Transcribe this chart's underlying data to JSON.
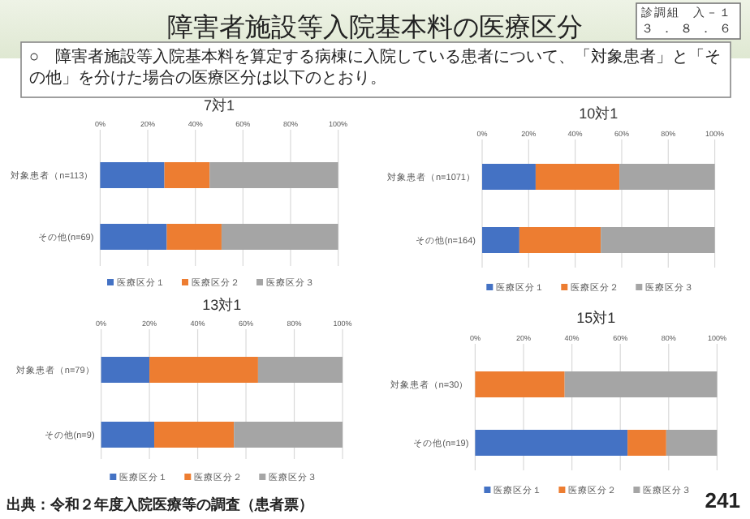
{
  "chart_data": [
    {
      "type": "other",
      "title": "障害者施設等入院基本料の医療区分",
      "annotations": [
        "診調組　入－１",
        "３．８．６",
        "○　障害者施設等入院基本料を算定する病棟に入院している患者について、「対象患者」と「その他」を分けた場合の医療区分は以下のとおり。",
        "出典：令和２年度入院医療等の調査（患者票）",
        "241"
      ]
    },
    {
      "type": "bar",
      "orientation": "horizontal",
      "stacked": true,
      "title": "7対1",
      "categories": [
        "対象患者（n=113）",
        "その他(n=69)"
      ],
      "xlim": [
        0,
        100
      ],
      "xticks": [
        {
          "value": 0,
          "label": "0%"
        },
        {
          "value": 20,
          "label": "20%"
        },
        {
          "value": 40,
          "label": "40%"
        },
        {
          "value": 60,
          "label": "60%"
        },
        {
          "value": 80,
          "label": "80%"
        },
        {
          "value": 100,
          "label": "100%"
        }
      ],
      "grid": "x",
      "legend": "bottom",
      "series": [
        {
          "name": "医療区分１",
          "color": "#4472c4",
          "values": [
            27,
            28
          ]
        },
        {
          "name": "医療区分２",
          "color": "#ed7d31",
          "values": [
            19,
            23
          ]
        },
        {
          "name": "医療区分３",
          "color": "#a5a5a5",
          "values": [
            54,
            49
          ]
        }
      ]
    },
    {
      "type": "bar",
      "orientation": "horizontal",
      "stacked": true,
      "title": "10対1",
      "categories": [
        "対象患者（n=1071）",
        "その他(n=164)"
      ],
      "xlim": [
        0,
        100
      ],
      "xticks": [
        {
          "value": 0,
          "label": "0%"
        },
        {
          "value": 20,
          "label": "20%"
        },
        {
          "value": 40,
          "label": "40%"
        },
        {
          "value": 60,
          "label": "60%"
        },
        {
          "value": 80,
          "label": "80%"
        },
        {
          "value": 100,
          "label": "100%"
        }
      ],
      "grid": "x",
      "legend": "bottom",
      "series": [
        {
          "name": "医療区分１",
          "color": "#4472c4",
          "values": [
            23,
            16
          ]
        },
        {
          "name": "医療区分２",
          "color": "#ed7d31",
          "values": [
            36,
            35
          ]
        },
        {
          "name": "医療区分３",
          "color": "#a5a5a5",
          "values": [
            41,
            49
          ]
        }
      ]
    },
    {
      "type": "bar",
      "orientation": "horizontal",
      "stacked": true,
      "title": "13対1",
      "categories": [
        "対象患者（n=79）",
        "その他(n=9)"
      ],
      "xlim": [
        0,
        100
      ],
      "xticks": [
        {
          "value": 0,
          "label": "0%"
        },
        {
          "value": 20,
          "label": "20%"
        },
        {
          "value": 40,
          "label": "40%"
        },
        {
          "value": 60,
          "label": "60%"
        },
        {
          "value": 80,
          "label": "80%"
        },
        {
          "value": 100,
          "label": "100%"
        }
      ],
      "grid": "x",
      "legend": "bottom",
      "series": [
        {
          "name": "医療区分１",
          "color": "#4472c4",
          "values": [
            20,
            22
          ]
        },
        {
          "name": "医療区分２",
          "color": "#ed7d31",
          "values": [
            45,
            33
          ]
        },
        {
          "name": "医療区分３",
          "color": "#a5a5a5",
          "values": [
            35,
            45
          ]
        }
      ]
    },
    {
      "type": "bar",
      "orientation": "horizontal",
      "stacked": true,
      "title": "15対1",
      "categories": [
        "対象患者（n=30）",
        "その他(n=19)"
      ],
      "xlim": [
        0,
        100
      ],
      "xticks": [
        {
          "value": 0,
          "label": "0%"
        },
        {
          "value": 20,
          "label": "20%"
        },
        {
          "value": 40,
          "label": "40%"
        },
        {
          "value": 60,
          "label": "60%"
        },
        {
          "value": 80,
          "label": "80%"
        },
        {
          "value": 100,
          "label": "100%"
        }
      ],
      "grid": "x",
      "legend": "bottom",
      "series": [
        {
          "name": "医療区分１",
          "color": "#4472c4",
          "values": [
            0,
            63
          ]
        },
        {
          "name": "医療区分２",
          "color": "#ed7d31",
          "values": [
            37,
            16
          ]
        },
        {
          "name": "医療区分３",
          "color": "#a5a5a5",
          "values": [
            63,
            21
          ]
        }
      ]
    }
  ]
}
